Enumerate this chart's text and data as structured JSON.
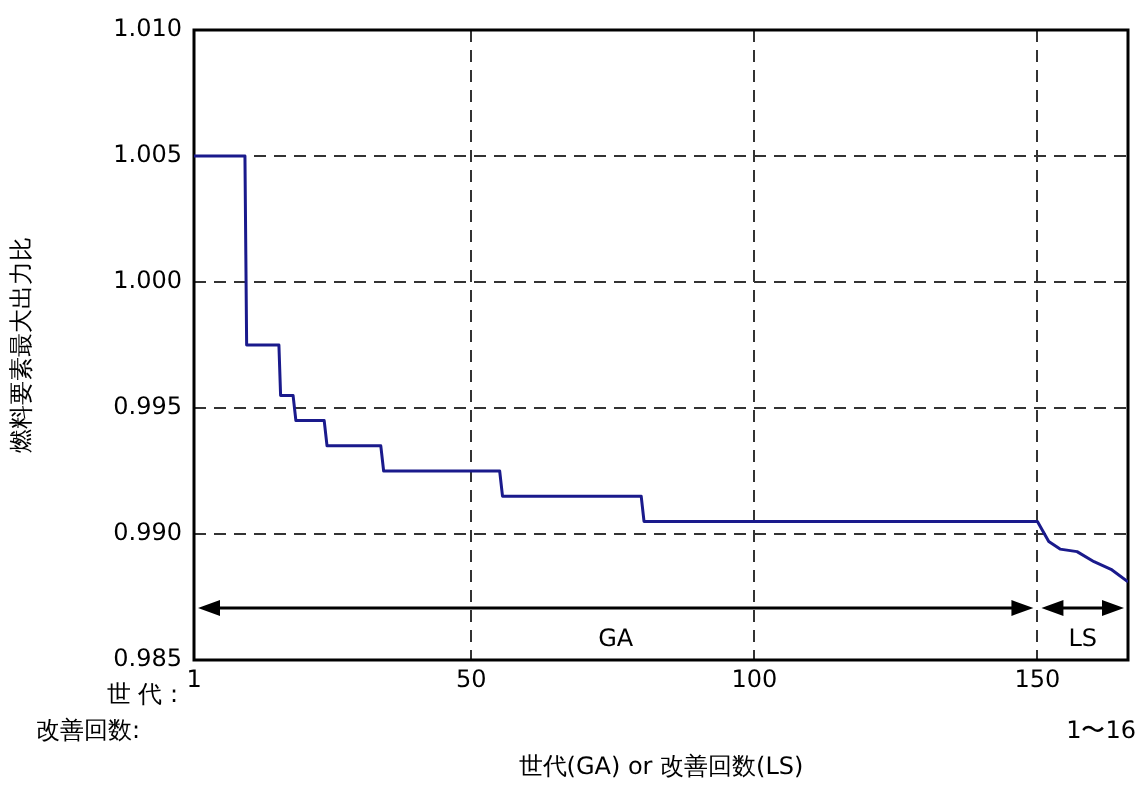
{
  "chart_data": {
    "type": "line",
    "xlabel": "世代(GA) or 改善回数(LS)",
    "ylabel": "燃料要素最大出力比",
    "x": [
      1,
      10,
      10.3,
      16,
      16.3,
      18.5,
      19,
      24,
      24.5,
      34,
      34.5,
      55,
      55.5,
      80,
      80.5,
      150,
      152,
      154,
      157,
      160,
      163,
      166
    ],
    "series": [
      {
        "color": "#1a1a8c",
        "values": [
          1.005,
          1.005,
          0.9975,
          0.9975,
          0.9955,
          0.9955,
          0.9945,
          0.9945,
          0.9935,
          0.9935,
          0.9925,
          0.9925,
          0.9915,
          0.9915,
          0.9905,
          0.9905,
          0.9897,
          0.9894,
          0.9893,
          0.9889,
          0.9886,
          0.9881
        ]
      }
    ],
    "xlim": [
      1,
      166
    ],
    "xticks": [
      1,
      50,
      100,
      150
    ],
    "ylim": [
      0.985,
      1.01
    ],
    "yticks": [
      {
        "value": 0.985,
        "label": "0.985"
      },
      {
        "value": 0.99,
        "label": "0.990"
      },
      {
        "value": 0.995,
        "label": "0.995"
      },
      {
        "value": 1,
        "label": "1.000"
      },
      {
        "value": 1.005,
        "label": "1.005"
      },
      {
        "value": 1.01,
        "label": "1.010"
      }
    ],
    "grid": true,
    "line_style": "solid",
    "marker": "none",
    "legend": false,
    "annotations": [
      "世 代 :",
      "改善回数:",
      "1〜16",
      "GA",
      "LS"
    ]
  }
}
